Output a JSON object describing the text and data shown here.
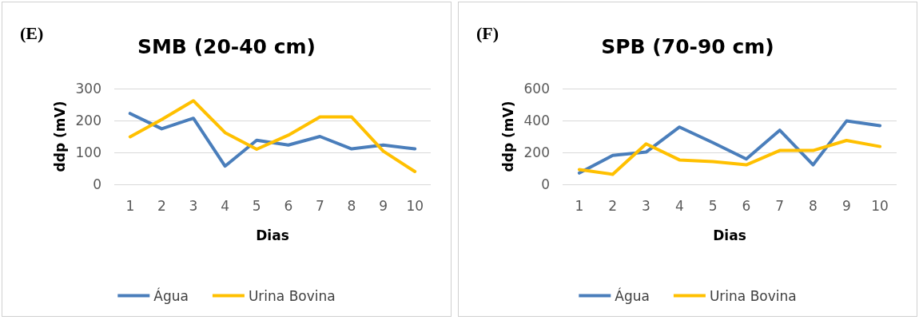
{
  "chart_data": [
    {
      "type": "line",
      "title": "SMB (20-40 cm)",
      "annotations": [
        "(E)"
      ],
      "xlabel": "Dias",
      "ylabel": "ddp (mV)",
      "categories": [
        "1",
        "2",
        "3",
        "4",
        "5",
        "6",
        "7",
        "8",
        "9",
        "10"
      ],
      "series": [
        {
          "name": "Água",
          "color": "#4a7ebb",
          "values": [
            222,
            174,
            207,
            57,
            138,
            123,
            150,
            111,
            123,
            111
          ]
        },
        {
          "name": "Urina Bovina",
          "color": "#ffc000",
          "values": [
            149,
            203,
            262,
            162,
            110,
            154,
            211,
            211,
            104,
            40
          ]
        }
      ],
      "ylim": [
        0,
        300
      ],
      "yticks": [
        0,
        100,
        200,
        300
      ],
      "grid": "y",
      "legend": "bottom",
      "marker": "none",
      "line_style": "solid"
    },
    {
      "type": "line",
      "title": "SPB (70-90 cm)",
      "annotations": [
        "(F)"
      ],
      "xlabel": "Dias",
      "ylabel": "ddp (mV)",
      "categories": [
        "1",
        "2",
        "3",
        "4",
        "5",
        "6",
        "7",
        "8",
        "9",
        "10"
      ],
      "series": [
        {
          "name": "Água",
          "color": "#4a7ebb",
          "values": [
            71,
            181,
            202,
            359,
            261,
            159,
            339,
            122,
            397,
            368
          ]
        },
        {
          "name": "Urina Bovina",
          "color": "#ffc000",
          "values": [
            93,
            63,
            254,
            153,
            142,
            122,
            212,
            212,
            275,
            237
          ]
        }
      ],
      "ylim": [
        0,
        600
      ],
      "yticks": [
        0,
        200,
        400,
        600
      ],
      "grid": "y",
      "legend": "bottom",
      "marker": "none",
      "line_style": "solid"
    }
  ]
}
